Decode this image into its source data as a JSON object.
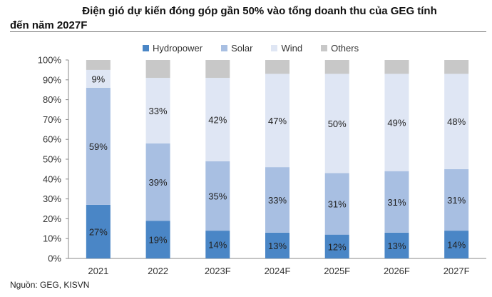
{
  "title_line1": "Điện gió dự kiến đóng góp gần 50% vào tổng doanh thu của GEG tính",
  "title_line2": "đến năm 2027F",
  "source": "Nguồn: GEG, KISVN",
  "colors": {
    "Hydropower": "#4a86c6",
    "Solar": "#a8bfe2",
    "Wind": "#dfe6f4",
    "Others": "#c8c8c8"
  },
  "chart_data": {
    "type": "bar",
    "stacked": true,
    "categories": [
      "2021",
      "2022",
      "2023F",
      "2024F",
      "2025F",
      "2026F",
      "2027F"
    ],
    "series": [
      {
        "name": "Hydropower",
        "values": [
          27,
          19,
          14,
          13,
          12,
          13,
          14
        ]
      },
      {
        "name": "Solar",
        "values": [
          59,
          39,
          35,
          33,
          31,
          31,
          31
        ]
      },
      {
        "name": "Wind",
        "values": [
          9,
          33,
          42,
          47,
          50,
          49,
          48
        ]
      },
      {
        "name": "Others",
        "values": [
          5,
          9,
          9,
          7,
          7,
          7,
          7
        ]
      }
    ],
    "labels": [
      [
        "27%",
        "19%",
        "14%",
        "13%",
        "12%",
        "13%",
        "14%"
      ],
      [
        "59%",
        "39%",
        "35%",
        "33%",
        "31%",
        "31%",
        "31%"
      ],
      [
        "9%",
        "33%",
        "42%",
        "47%",
        "50%",
        "49%",
        "48%"
      ],
      [
        "",
        "",
        "",
        "",
        "",
        "",
        ""
      ]
    ],
    "yticks": [
      "0%",
      "10%",
      "20%",
      "30%",
      "40%",
      "50%",
      "60%",
      "70%",
      "80%",
      "90%",
      "100%"
    ],
    "ylim": [
      0,
      100
    ],
    "legend_position": "top",
    "grid": false
  }
}
